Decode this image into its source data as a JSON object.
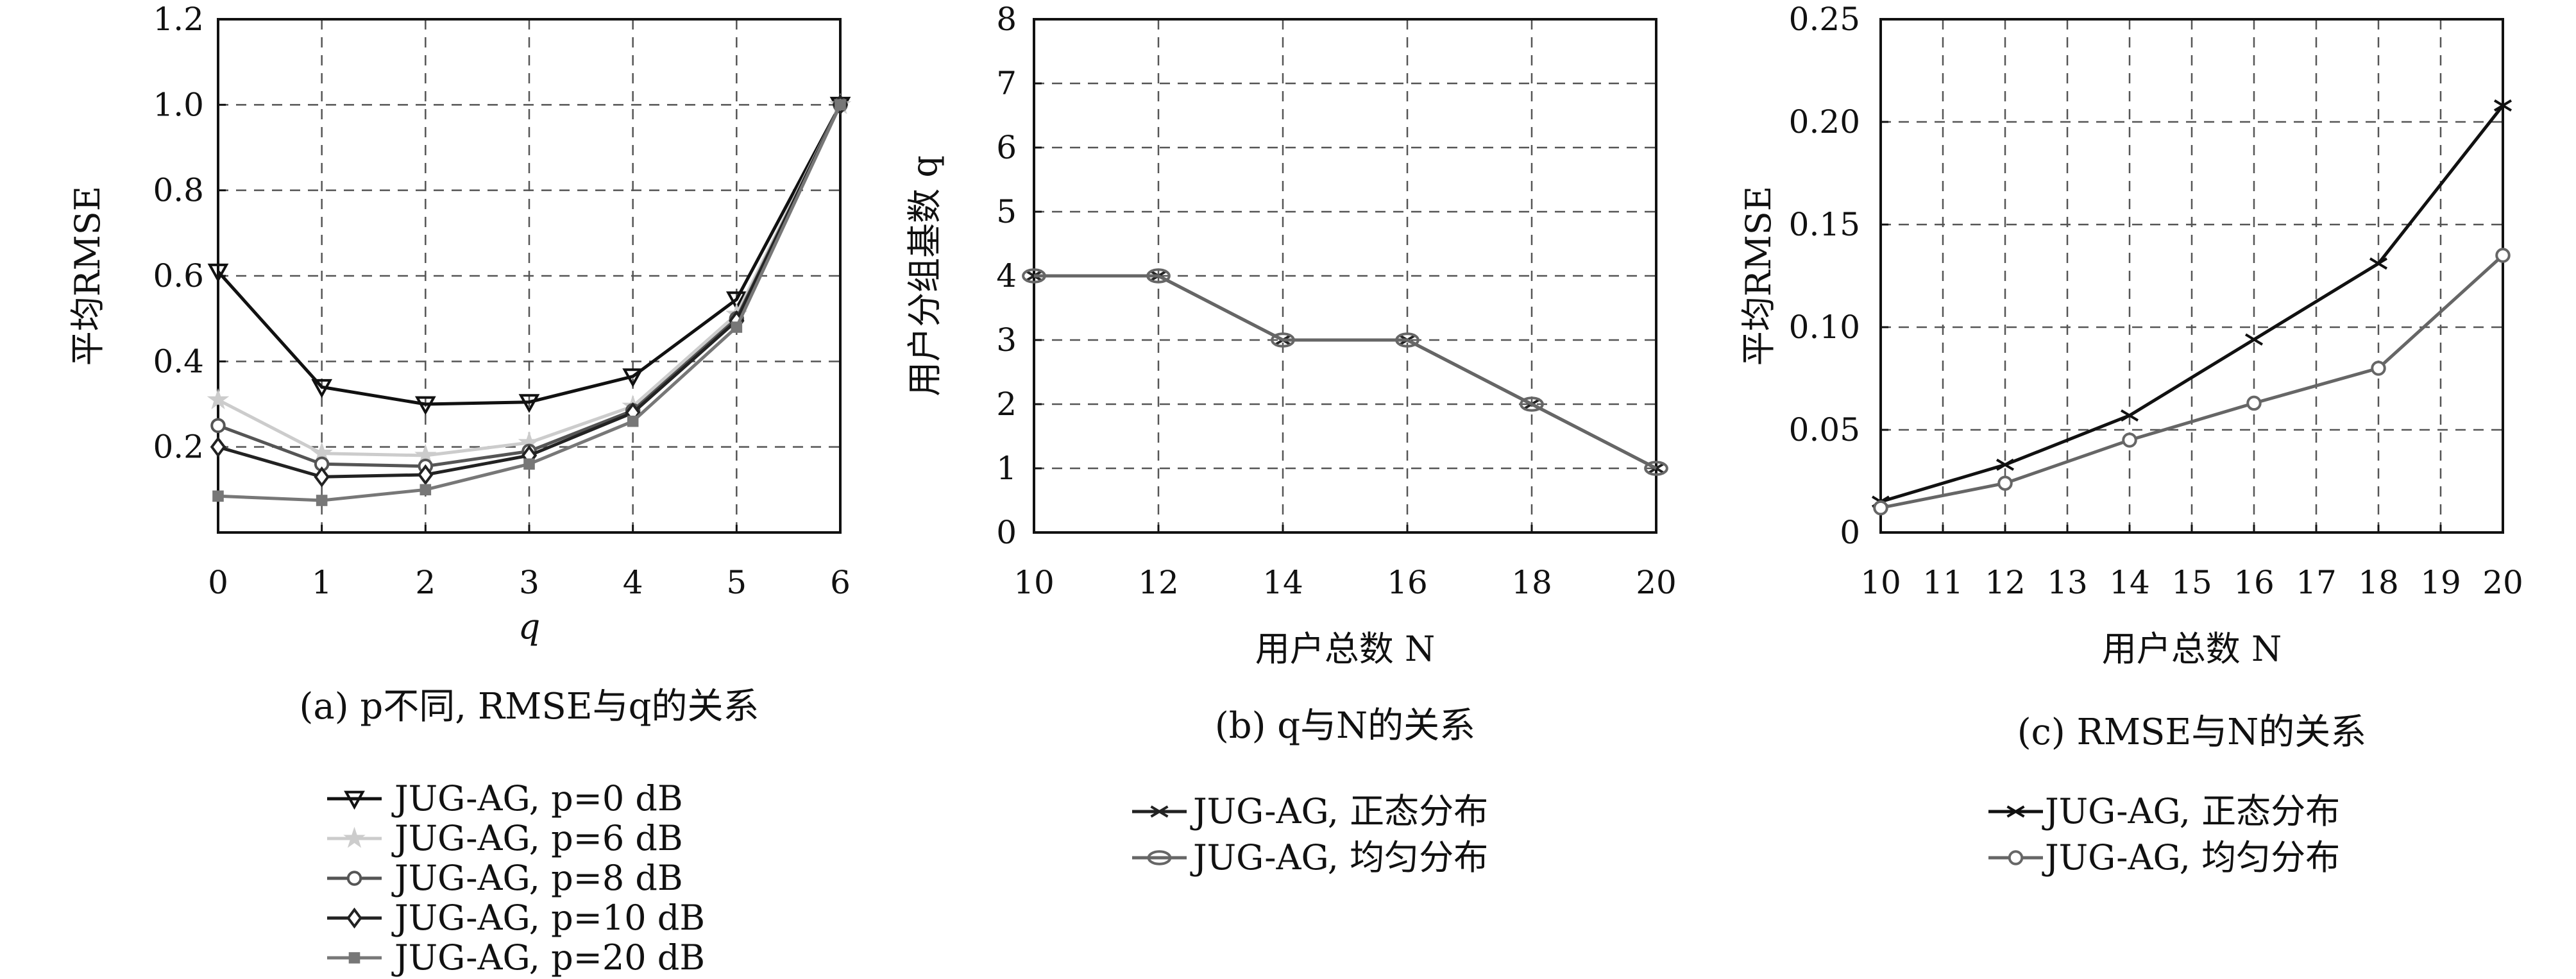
{
  "chart_data": [
    {
      "type": "line",
      "title": "",
      "caption": "(a) p不同, RMSE与q的关系",
      "xlabel": "q",
      "ylabel": "平均RMSE",
      "xlim": [
        0,
        6
      ],
      "ylim": [
        0,
        1.2
      ],
      "xticks": [
        "0",
        "1",
        "2",
        "3",
        "4",
        "5",
        "6"
      ],
      "yticks": [
        "0.2",
        "0.4",
        "0.6",
        "0.8",
        "1.0",
        "1.2"
      ],
      "grid": true,
      "legend_position": "bottom",
      "x": [
        0,
        1,
        2,
        3,
        4,
        5,
        6
      ],
      "series": [
        {
          "name": "JUG-AG, p=0 dB",
          "color": "#111111",
          "marker": "triangle-down",
          "values": [
            0.61,
            0.34,
            0.3,
            0.305,
            0.365,
            0.545,
            1.0
          ]
        },
        {
          "name": "JUG-AG, p=6 dB",
          "color": "#cccccc",
          "marker": "star",
          "values": [
            0.31,
            0.185,
            0.18,
            0.21,
            0.295,
            0.51,
            1.0
          ]
        },
        {
          "name": "JUG-AG, p=8 dB",
          "color": "#555555",
          "marker": "circle",
          "values": [
            0.25,
            0.16,
            0.155,
            0.19,
            0.285,
            0.5,
            1.0
          ]
        },
        {
          "name": "JUG-AG, p=10 dB",
          "color": "#222222",
          "marker": "diamond",
          "values": [
            0.2,
            0.13,
            0.135,
            0.18,
            0.28,
            0.495,
            1.0
          ]
        },
        {
          "name": "JUG-AG, p=20 dB",
          "color": "#777777",
          "marker": "square",
          "values": [
            0.085,
            0.075,
            0.1,
            0.16,
            0.26,
            0.48,
            1.0
          ]
        }
      ]
    },
    {
      "type": "line",
      "title": "",
      "caption": "(b) q与N的关系",
      "xlabel": "用户总数 N",
      "ylabel": "用户分组基数 q",
      "xlim": [
        10,
        20
      ],
      "ylim": [
        0,
        8
      ],
      "xticks": [
        "10",
        "12",
        "14",
        "16",
        "18",
        "20"
      ],
      "yticks": [
        "0",
        "1",
        "2",
        "3",
        "4",
        "5",
        "6",
        "7",
        "8"
      ],
      "grid": true,
      "legend_position": "bottom",
      "x": [
        10,
        12,
        14,
        16,
        18,
        20
      ],
      "series": [
        {
          "name": "JUG-AG, 正态分布",
          "color": "#222222",
          "marker": "x",
          "values": [
            4,
            4,
            3,
            3,
            2,
            1
          ]
        },
        {
          "name": "JUG-AG, 均匀分布",
          "color": "#666666",
          "marker": "ellipse",
          "values": [
            4,
            4,
            3,
            3,
            2,
            1
          ]
        }
      ]
    },
    {
      "type": "line",
      "title": "",
      "caption": "(c) RMSE与N的关系",
      "xlabel": "用户总数 N",
      "ylabel": "平均RMSE",
      "xlim": [
        10,
        20
      ],
      "ylim": [
        0,
        0.25
      ],
      "xticks": [
        "10",
        "11",
        "12",
        "13",
        "14",
        "15",
        "16",
        "17",
        "18",
        "19",
        "20"
      ],
      "yticks": [
        "0",
        "0.05",
        "0.10",
        "0.15",
        "0.20",
        "0.25"
      ],
      "grid": true,
      "legend_position": "bottom",
      "x": [
        10,
        12,
        14,
        16,
        18,
        20
      ],
      "series": [
        {
          "name": "JUG-AG, 正态分布",
          "color": "#111111",
          "marker": "x",
          "values": [
            0.015,
            0.033,
            0.057,
            0.094,
            0.131,
            0.208
          ]
        },
        {
          "name": "JUG-AG, 均匀分布",
          "color": "#666666",
          "marker": "circle",
          "values": [
            0.012,
            0.024,
            0.045,
            0.063,
            0.08,
            0.135
          ]
        }
      ]
    }
  ]
}
